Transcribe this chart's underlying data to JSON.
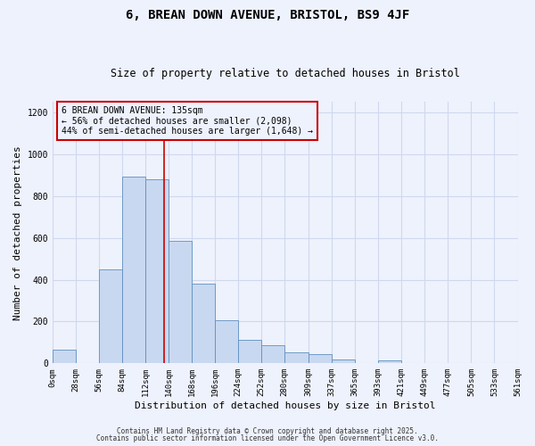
{
  "title": "6, BREAN DOWN AVENUE, BRISTOL, BS9 4JF",
  "subtitle": "Size of property relative to detached houses in Bristol",
  "xlabel": "Distribution of detached houses by size in Bristol",
  "ylabel": "Number of detached properties",
  "background_color": "#eef2fc",
  "bar_color": "#c8d8f0",
  "bar_edge_color": "#6090c0",
  "bin_edges": [
    0,
    28,
    56,
    84,
    112,
    140,
    168,
    196,
    224,
    252,
    280,
    309,
    337,
    365,
    393,
    421,
    449,
    477,
    505,
    533,
    561
  ],
  "bar_heights": [
    65,
    0,
    448,
    893,
    878,
    587,
    380,
    205,
    112,
    87,
    52,
    45,
    18,
    0,
    15,
    0,
    0,
    0,
    0,
    0
  ],
  "property_size": 135,
  "vline_color": "#cc0000",
  "annotation_line1": "6 BREAN DOWN AVENUE: 135sqm",
  "annotation_line2": "← 56% of detached houses are smaller (2,098)",
  "annotation_line3": "44% of semi-detached houses are larger (1,648) →",
  "annotation_box_edgecolor": "#cc0000",
  "ylim": [
    0,
    1250
  ],
  "yticks": [
    0,
    200,
    400,
    600,
    800,
    1000,
    1200
  ],
  "tick_labels": [
    "0sqm",
    "28sqm",
    "56sqm",
    "84sqm",
    "112sqm",
    "140sqm",
    "168sqm",
    "196sqm",
    "224sqm",
    "252sqm",
    "280sqm",
    "309sqm",
    "337sqm",
    "365sqm",
    "393sqm",
    "421sqm",
    "449sqm",
    "477sqm",
    "505sqm",
    "533sqm",
    "561sqm"
  ],
  "footer_line1": "Contains HM Land Registry data © Crown copyright and database right 2025.",
  "footer_line2": "Contains public sector information licensed under the Open Government Licence v3.0.",
  "grid_color": "#d0d8ee",
  "title_fontsize": 10,
  "subtitle_fontsize": 8.5,
  "axis_label_fontsize": 8,
  "tick_fontsize": 6.5,
  "annotation_fontsize": 7,
  "footer_fontsize": 5.5
}
